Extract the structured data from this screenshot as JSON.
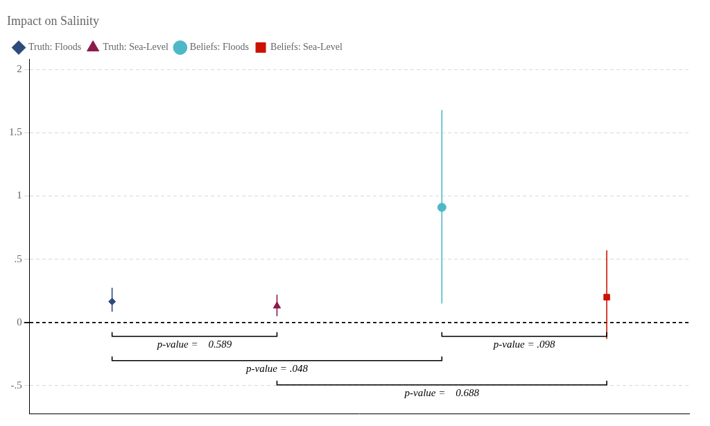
{
  "chart_data": {
    "type": "scatter",
    "title": "Impact on Salinity",
    "ylim": [
      -0.72,
      2.08
    ],
    "yticks": [
      {
        "value": -0.5,
        "label": "-.5"
      },
      0,
      {
        "value": 0.5,
        "label": ".5"
      },
      1,
      1.5,
      2
    ],
    "grid": true,
    "legend": "upper left",
    "tick_labels": "y",
    "series": [
      {
        "name": "Truth: Floods",
        "color": "#2c4a7c",
        "marker": "diamond",
        "values": [
          0.165
        ],
        "error_low": [
          0.08
        ],
        "error_high": [
          0.11
        ]
      },
      {
        "name": "Truth: Sea-Level",
        "color": "#8b1a4a",
        "marker": "triangle",
        "values": [
          0.13
        ],
        "error_low": [
          0.08
        ],
        "error_high": [
          0.09
        ]
      },
      {
        "name": "Beliefs: Floods",
        "color": "#4db8c8",
        "marker": "circle",
        "values": [
          0.91
        ],
        "error_low": [
          0.76
        ],
        "error_high": [
          0.77
        ]
      },
      {
        "name": "Beliefs: Sea-Level",
        "color": "#cc1100",
        "marker": "square",
        "values": [
          0.2
        ],
        "error_low": [
          0.33
        ],
        "error_high": [
          0.37
        ]
      }
    ],
    "annotations": [
      {
        "text": "p-value =    0.589",
        "from": "Truth: Floods",
        "to": "Truth: Sea-Level"
      },
      {
        "text": "p-value = .098",
        "from": "Beliefs: Floods",
        "to": "Beliefs: Sea-Level"
      },
      {
        "text": "p-value = .048",
        "from": "Truth: Floods",
        "to": "Beliefs: Floods"
      },
      {
        "text": "p-value =    0.688",
        "from": "Truth: Sea-Level",
        "to": "Beliefs: Sea-Level"
      }
    ]
  }
}
